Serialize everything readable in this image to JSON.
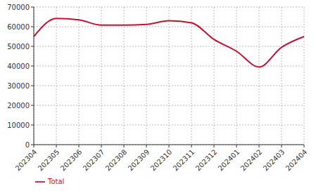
{
  "chart_data": {
    "type": "line",
    "categories": [
      "202304",
      "202305",
      "202306",
      "202307",
      "202308",
      "202309",
      "202310",
      "202311",
      "202312",
      "202401",
      "202402",
      "202403",
      "202404"
    ],
    "series": [
      {
        "name": "Total",
        "color": "#c8102e",
        "values": [
          55000,
          64200,
          63500,
          60800,
          60800,
          61200,
          63000,
          62000,
          53500,
          47500,
          39500,
          49500,
          55000
        ]
      }
    ],
    "ylim": [
      0,
      70000
    ],
    "yticks": [
      0,
      10000,
      20000,
      30000,
      40000,
      50000,
      60000,
      70000
    ],
    "grid": true,
    "legend": "bottom-left"
  }
}
